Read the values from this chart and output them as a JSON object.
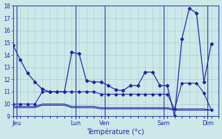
{
  "background_color": "#cce8e8",
  "grid_color": "#aacccc",
  "line_color": "#2222aa",
  "xlabel": "Température (°c)",
  "ylim": [
    9,
    18
  ],
  "yticks": [
    9,
    10,
    11,
    12,
    13,
    14,
    15,
    16,
    17,
    18
  ],
  "xlim": [
    0,
    28
  ],
  "day_labels": [
    "Jeu",
    "Lun",
    "Ven",
    "Sam",
    "Dim"
  ],
  "day_positions": [
    0.5,
    8.5,
    12.5,
    20.5,
    26.5
  ],
  "vline_positions": [
    0.5,
    8.5,
    12.5,
    20.5,
    26.5
  ],
  "s1_x": [
    0,
    1,
    2,
    3,
    4,
    5,
    6,
    7,
    8,
    9,
    10,
    11,
    12,
    13,
    14,
    15,
    16,
    17,
    18,
    19,
    20,
    21,
    22,
    23,
    24,
    25,
    26,
    27
  ],
  "s1_y": [
    14.8,
    13.6,
    12.5,
    11.8,
    11.2,
    11.0,
    11.0,
    11.0,
    14.2,
    14.1,
    11.9,
    11.8,
    11.8,
    11.5,
    11.15,
    11.1,
    11.5,
    11.5,
    12.6,
    12.6,
    11.5,
    11.5,
    9.0,
    15.3,
    17.8,
    17.4,
    11.8,
    14.9
  ],
  "s2_x": [
    0,
    1,
    2,
    3,
    4,
    5,
    6,
    7,
    8,
    9,
    10,
    11,
    12,
    13,
    14,
    15,
    16,
    17,
    18,
    19,
    20,
    21,
    22,
    23,
    24,
    25,
    26,
    27
  ],
  "s2_y": [
    10.0,
    10.0,
    10.0,
    10.0,
    11.0,
    11.0,
    11.0,
    11.0,
    11.0,
    11.0,
    11.0,
    11.0,
    10.8,
    10.8,
    10.8,
    10.8,
    10.8,
    10.8,
    10.8,
    10.8,
    10.8,
    10.8,
    9.6,
    11.7,
    11.7,
    11.7,
    10.9,
    9.5
  ],
  "s3_x": [
    0,
    1,
    2,
    3,
    4,
    5,
    6,
    7,
    8,
    9,
    10,
    11,
    12,
    13,
    14,
    15,
    16,
    17,
    18,
    19,
    20,
    21,
    22,
    23,
    24,
    25,
    26,
    27
  ],
  "s3_y": [
    9.8,
    9.8,
    9.8,
    9.8,
    10.0,
    10.0,
    10.0,
    10.0,
    9.8,
    9.8,
    9.8,
    9.8,
    9.7,
    9.7,
    9.7,
    9.7,
    9.7,
    9.7,
    9.7,
    9.7,
    9.7,
    9.7,
    9.6,
    9.6,
    9.6,
    9.6,
    9.6,
    9.5
  ],
  "s4_x": [
    0,
    1,
    2,
    3,
    4,
    5,
    6,
    7,
    8,
    9,
    10,
    11,
    12,
    13,
    14,
    15,
    16,
    17,
    18,
    19,
    20,
    21,
    22,
    23,
    24,
    25,
    26,
    27
  ],
  "s4_y": [
    9.7,
    9.7,
    9.7,
    9.7,
    9.9,
    9.9,
    9.9,
    9.9,
    9.7,
    9.7,
    9.7,
    9.7,
    9.6,
    9.6,
    9.6,
    9.6,
    9.6,
    9.6,
    9.6,
    9.6,
    9.6,
    9.6,
    9.5,
    9.5,
    9.5,
    9.5,
    9.5,
    9.5
  ]
}
